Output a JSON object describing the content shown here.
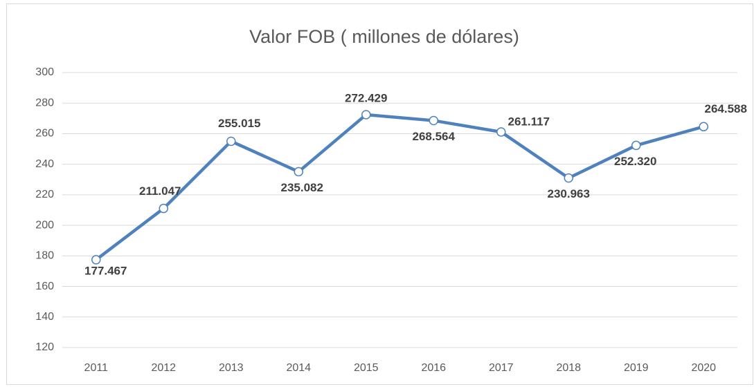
{
  "chart_data": {
    "type": "line",
    "title": "Valor FOB ( millones de dólares)",
    "categories": [
      "2011",
      "2012",
      "2013",
      "2014",
      "2015",
      "2016",
      "2017",
      "2018",
      "2019",
      "2020"
    ],
    "series": [
      {
        "color": "#4f81bd",
        "values": [
          177.467,
          211.047,
          255.015,
          235.082,
          272.429,
          268.564,
          261.117,
          230.963,
          252.32,
          264.588
        ],
        "value_labels": [
          "177.467",
          "211.047",
          "255.015",
          "235.082",
          "272.429",
          "268.564",
          "261.117",
          "230.963",
          "252.320",
          "264.588"
        ]
      }
    ],
    "ylim": [
      120,
      300
    ],
    "yticks": [
      120,
      140,
      160,
      180,
      200,
      220,
      240,
      260,
      280,
      300
    ],
    "grid": true
  }
}
